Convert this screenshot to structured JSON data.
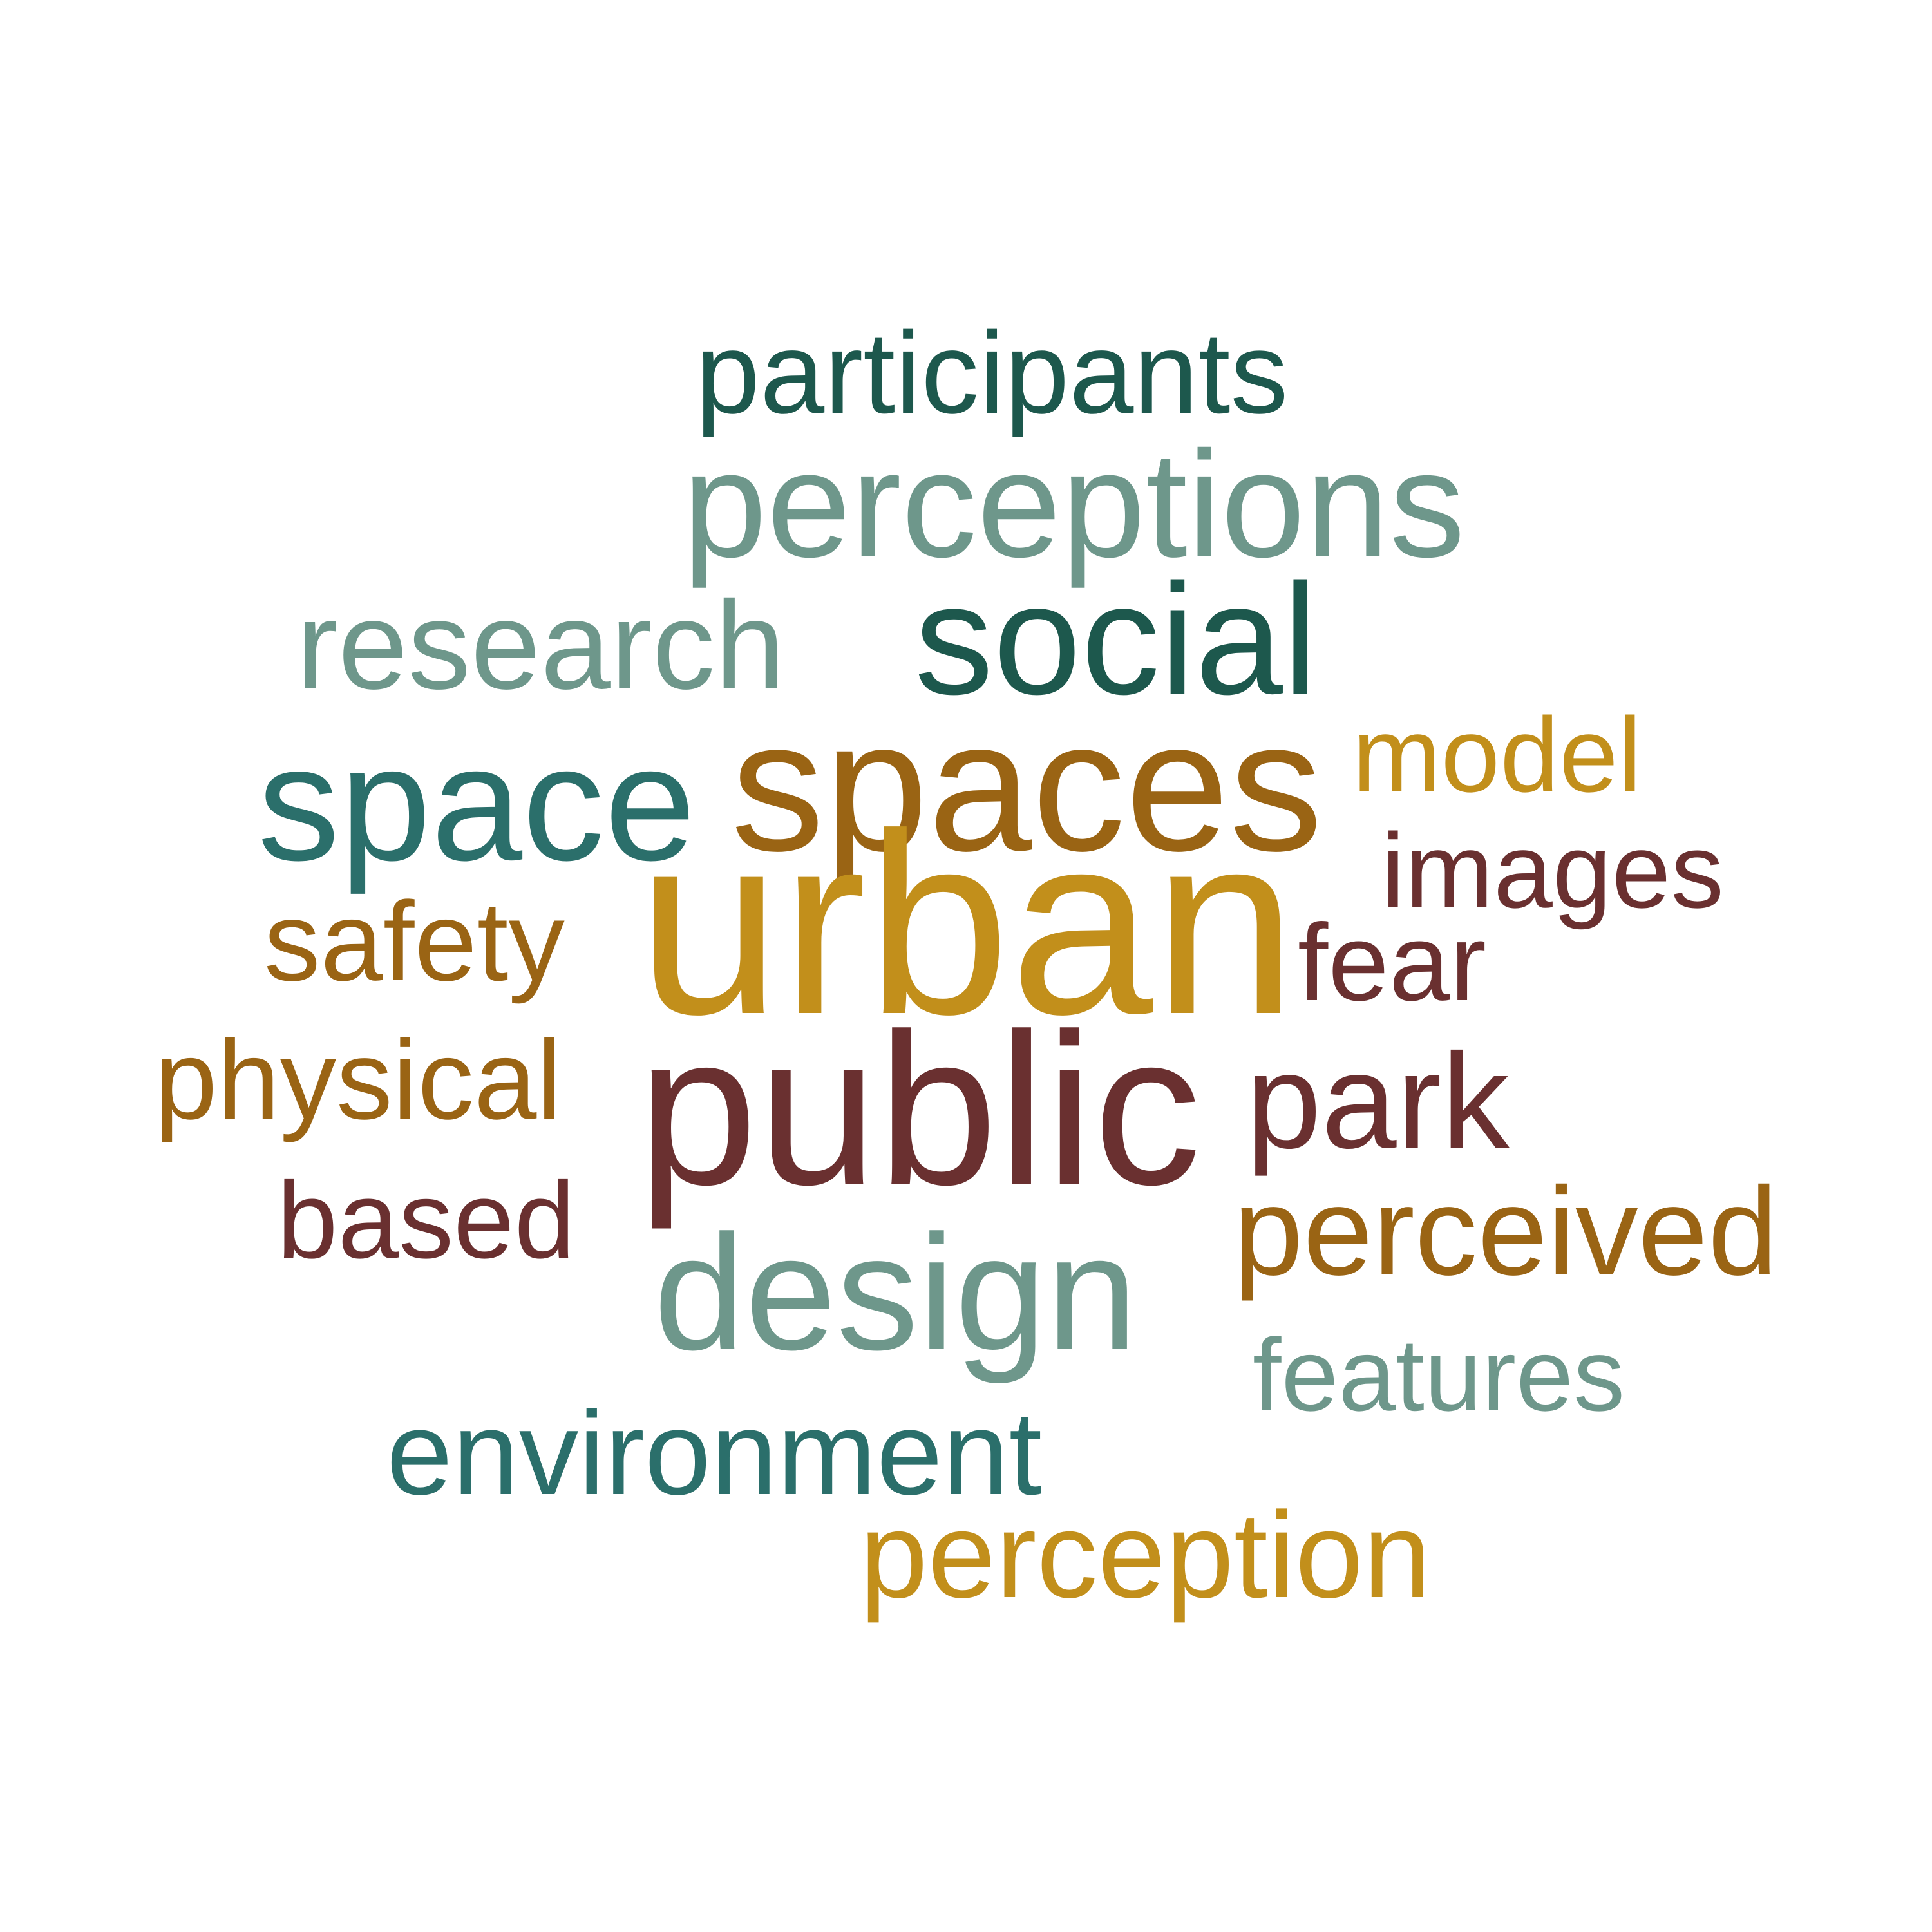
{
  "word_cloud": {
    "words": [
      {
        "text": "participants",
        "color": "#1d584d"
      },
      {
        "text": "perceptions",
        "color": "#6e978b"
      },
      {
        "text": "research",
        "color": "#6e978b"
      },
      {
        "text": "social",
        "color": "#1d584d"
      },
      {
        "text": "spaces",
        "color": "#9a6414"
      },
      {
        "text": "model",
        "color": "#c28f1b"
      },
      {
        "text": "space",
        "color": "#2b6f6b"
      },
      {
        "text": "images",
        "color": "#6a3030"
      },
      {
        "text": "safety",
        "color": "#9a6414"
      },
      {
        "text": "urban",
        "color": "#c28f1b"
      },
      {
        "text": "fear",
        "color": "#6a3030"
      },
      {
        "text": "physical",
        "color": "#9a6414"
      },
      {
        "text": "public",
        "color": "#6a3030"
      },
      {
        "text": "park",
        "color": "#6a3030"
      },
      {
        "text": "based",
        "color": "#6a3030"
      },
      {
        "text": "perceived",
        "color": "#9a6414"
      },
      {
        "text": "design",
        "color": "#6e978b"
      },
      {
        "text": "features",
        "color": "#6e978b"
      },
      {
        "text": "environment",
        "color": "#2b6f6b"
      },
      {
        "text": "perception",
        "color": "#c28f1b"
      }
    ]
  }
}
